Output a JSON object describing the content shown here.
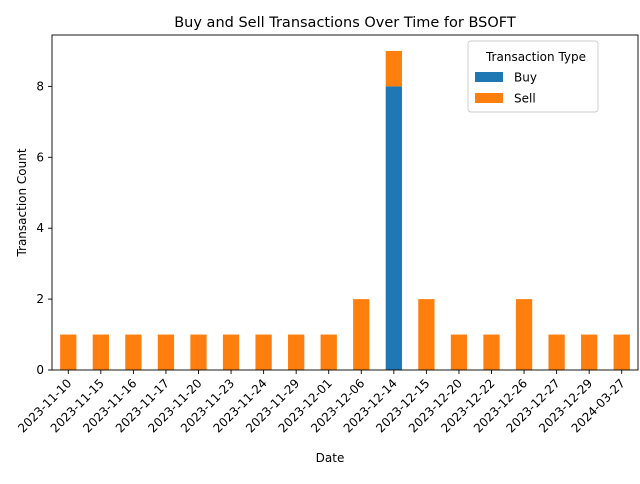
{
  "chart_data": {
    "type": "bar",
    "stacked": true,
    "title": "Buy and Sell Transactions Over Time for BSOFT",
    "xlabel": "Date",
    "ylabel": "Transaction Count",
    "categories": [
      "2023-11-10",
      "2023-11-15",
      "2023-11-16",
      "2023-11-17",
      "2023-11-20",
      "2023-11-23",
      "2023-11-24",
      "2023-11-29",
      "2023-12-01",
      "2023-12-06",
      "2023-12-14",
      "2023-12-15",
      "2023-12-20",
      "2023-12-22",
      "2023-12-26",
      "2023-12-27",
      "2023-12-29",
      "2024-03-27"
    ],
    "series": [
      {
        "name": "Buy",
        "color": "#1f77b4",
        "values": [
          0,
          0,
          0,
          0,
          0,
          0,
          0,
          0,
          0,
          0,
          8,
          0,
          0,
          0,
          0,
          0,
          0,
          0
        ]
      },
      {
        "name": "Sell",
        "color": "#ff7f0e",
        "values": [
          1,
          1,
          1,
          1,
          1,
          1,
          1,
          1,
          1,
          2,
          1,
          2,
          1,
          1,
          2,
          1,
          1,
          1
        ]
      }
    ],
    "ylim": [
      0,
      9.45
    ],
    "yticks": [
      0,
      2,
      4,
      6,
      8
    ],
    "grid": false,
    "legend": {
      "title": "Transaction Type",
      "placement": "top-right"
    }
  }
}
